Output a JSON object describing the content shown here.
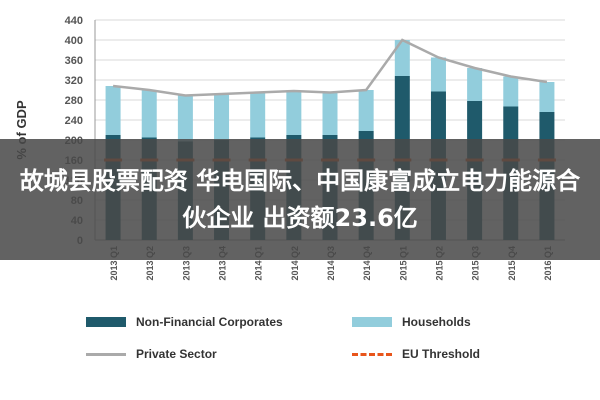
{
  "chart_data": {
    "type": "bar",
    "ylabel": "% of GDP",
    "ylim": [
      0,
      440
    ],
    "yticks": [
      0,
      40,
      80,
      120,
      160,
      200,
      240,
      280,
      320,
      360,
      400,
      440
    ],
    "categories": [
      "2013 Q1",
      "2013 Q2",
      "2013 Q3",
      "2013 Q4",
      "2014 Q1",
      "2014 Q2",
      "2014 Q3",
      "2014 Q4",
      "2015 Q1",
      "2015 Q2",
      "2015 Q3",
      "2015 Q4",
      "2016 Q1"
    ],
    "series": [
      {
        "name": "Non-Financial Corporates",
        "kind": "stacked-bar",
        "color": "#1f5a6b",
        "values": [
          210,
          205,
          197,
          200,
          205,
          210,
          210,
          218,
          328,
          297,
          278,
          267,
          256
        ]
      },
      {
        "name": "Households",
        "kind": "stacked-bar",
        "color": "#92cddc",
        "values": [
          98,
          95,
          92,
          92,
          90,
          88,
          85,
          82,
          72,
          68,
          66,
          60,
          60
        ]
      },
      {
        "name": "Private Sector",
        "kind": "line",
        "color": "#aaaaaa",
        "values": [
          308,
          300,
          289,
          292,
          295,
          298,
          295,
          300,
          400,
          365,
          344,
          327,
          316
        ]
      },
      {
        "name": "EU Threshold",
        "kind": "dashed-line",
        "color": "#e8551b",
        "values": [
          160,
          160,
          160,
          160,
          160,
          160,
          160,
          160,
          160,
          160,
          160,
          160,
          160
        ]
      }
    ]
  },
  "overlay": {
    "line1": "故城县股票配资 华电国际、中国康富成立电力能源合",
    "line2": "伙企业 出资额23.6亿"
  },
  "legend": {
    "corporates": "Non-Financial Corporates",
    "households": "Households",
    "private": "Private Sector",
    "threshold": "EU Threshold"
  }
}
